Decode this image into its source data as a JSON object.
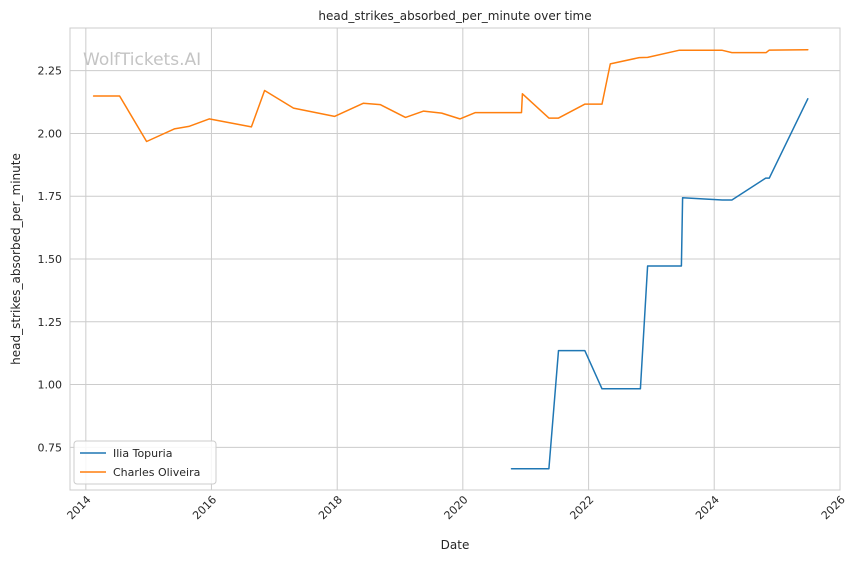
{
  "chart_data": {
    "type": "line",
    "title": "head_strikes_absorbed_per_minute over time",
    "xlabel": "Date",
    "ylabel": "head_strikes_absorbed_per_minute",
    "watermark": "WolfTickets.AI",
    "xlim": [
      "2013-10-01",
      "2026-01-01"
    ],
    "ylim": [
      0.58,
      2.42
    ],
    "x_ticks": [
      "2014",
      "2016",
      "2018",
      "2020",
      "2022",
      "2024",
      "2026"
    ],
    "y_ticks": [
      "0.75",
      "1.00",
      "1.25",
      "1.50",
      "1.75",
      "2.00",
      "2.25"
    ],
    "grid": true,
    "legend_position": "lower-left",
    "series": [
      {
        "name": "Ilia Topuria",
        "color": "#1f77b4",
        "points": [
          [
            "2020-10-10",
            0.665
          ],
          [
            "2021-05-15",
            0.665
          ],
          [
            "2021-07-10",
            1.135
          ],
          [
            "2021-12-10",
            1.135
          ],
          [
            "2022-03-20",
            0.983
          ],
          [
            "2022-10-29",
            0.983
          ],
          [
            "2022-12-10",
            1.472
          ],
          [
            "2023-06-24",
            1.472
          ],
          [
            "2023-07-01",
            1.744
          ],
          [
            "2024-02-17",
            1.735
          ],
          [
            "2024-04-13",
            1.735
          ],
          [
            "2024-10-26",
            1.822
          ],
          [
            "2024-11-16",
            1.822
          ],
          [
            "2025-06-28",
            2.138
          ]
        ]
      },
      {
        "name": "Charles Oliveira",
        "color": "#ff7f0e",
        "points": [
          [
            "2014-02-15",
            2.149
          ],
          [
            "2014-07-16",
            2.149
          ],
          [
            "2014-12-20",
            1.968
          ],
          [
            "2015-05-30",
            2.018
          ],
          [
            "2015-08-23",
            2.028
          ],
          [
            "2015-12-19",
            2.058
          ],
          [
            "2016-08-20",
            2.026
          ],
          [
            "2016-11-05",
            2.171
          ],
          [
            "2017-04-22",
            2.101
          ],
          [
            "2017-12-16",
            2.068
          ],
          [
            "2018-06-01",
            2.12
          ],
          [
            "2018-09-08",
            2.115
          ],
          [
            "2019-02-02",
            2.064
          ],
          [
            "2019-05-18",
            2.089
          ],
          [
            "2019-08-31",
            2.081
          ],
          [
            "2019-12-15",
            2.058
          ],
          [
            "2020-03-14",
            2.083
          ],
          [
            "2020-12-07",
            2.083
          ],
          [
            "2020-12-12",
            2.158
          ],
          [
            "2021-05-15",
            2.061
          ],
          [
            "2021-07-10",
            2.061
          ],
          [
            "2021-12-11",
            2.117
          ],
          [
            "2022-03-20",
            2.117
          ],
          [
            "2022-05-07",
            2.277
          ],
          [
            "2022-10-22",
            2.302
          ],
          [
            "2022-12-10",
            2.303
          ],
          [
            "2023-06-10",
            2.331
          ],
          [
            "2024-02-17",
            2.331
          ],
          [
            "2024-04-13",
            2.322
          ],
          [
            "2024-10-29",
            2.322
          ],
          [
            "2024-11-16",
            2.332
          ],
          [
            "2025-06-28",
            2.333
          ]
        ]
      }
    ]
  }
}
